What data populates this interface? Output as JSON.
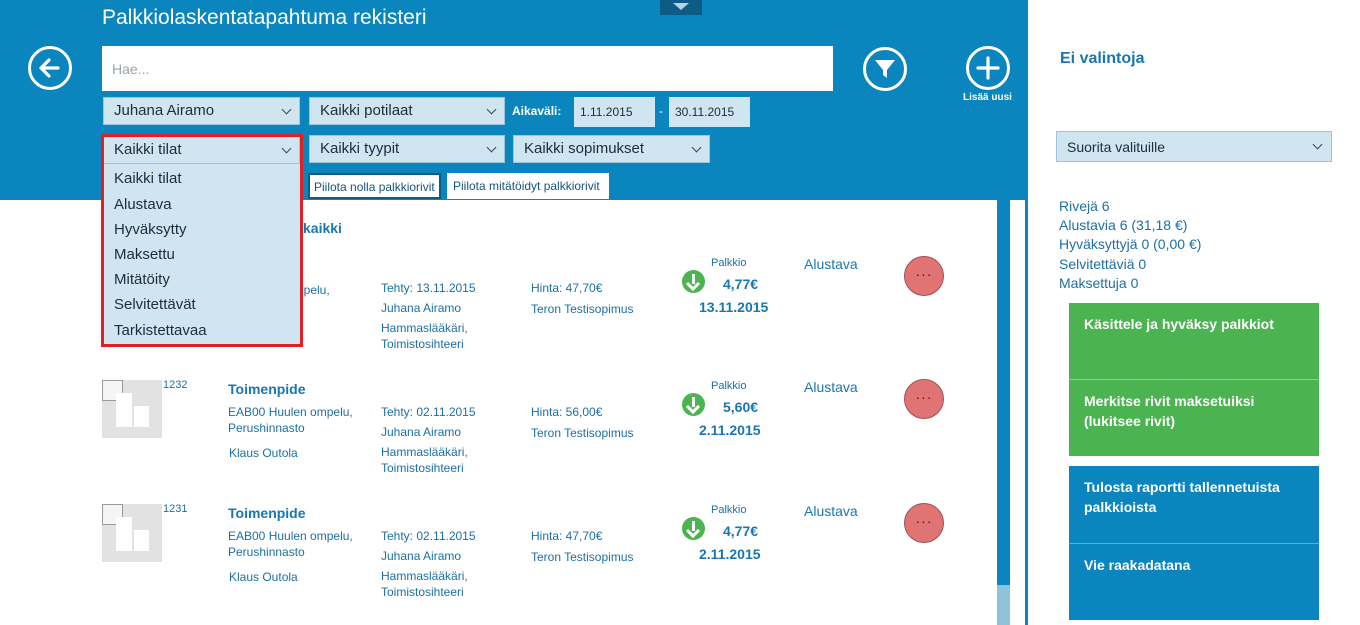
{
  "header": {
    "title": "Palkkiolaskentatapahtuma rekisteri",
    "search_placeholder": "Hae...",
    "add_label": "Lisää uusi"
  },
  "filters": {
    "person": "Juhana Airamo",
    "patients": "Kaikki potilaat",
    "period_label": "Aikaväli:",
    "date_from": "1.11.2015",
    "date_separator": "-",
    "date_to": "30.11.2015",
    "states": "Kaikki tilat",
    "types": "Kaikki tyypit",
    "contracts": "Kaikki sopimukset",
    "hide_zero": "Piilota nolla palkkiorivit",
    "hide_void": "Piilota mitätöidyt palkkiorivit"
  },
  "states_dropdown": {
    "options": [
      "Kaikki tilat",
      "Alustava",
      "Hyväksytty",
      "Maksettu",
      "Mitätöity",
      "Selvitettävät",
      "Tarkistettavaa"
    ]
  },
  "list": {
    "group_header": "kaikki",
    "rows": [
      {
        "id": "",
        "title": "e",
        "procedure": "ompelu,",
        "pricelist": "",
        "person": "",
        "done": "Tehty: 13.11.2015",
        "doctor": "Juhana Airamo",
        "role1": "Hammaslääkäri,",
        "role2": "Toimistosihteeri",
        "price": "Hinta: 47,70€",
        "contract": "Teron Testisopimus",
        "fee_label": "Palkkio",
        "fee_amount": "4,77€",
        "fee_date": "13.11.2015",
        "status": "Alustava",
        "more": "···"
      },
      {
        "id": "1232",
        "title": "Toimenpide",
        "procedure": "EAB00 Huulen ompelu,",
        "pricelist": "Perushinnasto",
        "person": "Klaus Outola",
        "done": "Tehty: 02.11.2015",
        "doctor": "Juhana Airamo",
        "role1": "Hammaslääkäri,",
        "role2": "Toimistosihteeri",
        "price": "Hinta: 56,00€",
        "contract": "Teron Testisopimus",
        "fee_label": "Palkkio",
        "fee_amount": "5,60€",
        "fee_date": "2.11.2015",
        "status": "Alustava",
        "more": "···"
      },
      {
        "id": "1231",
        "title": "Toimenpide",
        "procedure": "EAB00 Huulen ompelu,",
        "pricelist": "Perushinnasto",
        "person": "Klaus Outola",
        "done": "Tehty: 02.11.2015",
        "doctor": "Juhana Airamo",
        "role1": "Hammaslääkäri,",
        "role2": "Toimistosihteeri",
        "price": "Hinta: 47,70€",
        "contract": "Teron Testisopimus",
        "fee_label": "Palkkio",
        "fee_amount": "4,77€",
        "fee_date": "2.11.2015",
        "status": "Alustava",
        "more": "···"
      }
    ]
  },
  "right_panel": {
    "title": "Ei valintoja",
    "run_selected": "Suorita valituille",
    "stats": [
      "Rivejä 6",
      "Alustavia 6 (31,18 €)",
      "Hyväksyttyjä 0 (0,00 €)",
      "Selvitettäviä 0",
      "Maksettuja 0"
    ],
    "actions": [
      "Käsittele ja hyväksy palkkiot",
      "Merkitse rivit maksetuiksi (lukitsee rivit)",
      "Tulosta raportti tallennetuista palkkioista",
      "Vie raakadatana"
    ]
  },
  "colors": {
    "header_bg": "#0b85be",
    "accent_text": "#1a76b0",
    "green": "#4cb351",
    "more_button": "#e07474",
    "highlight_outline": "#e21e26"
  }
}
